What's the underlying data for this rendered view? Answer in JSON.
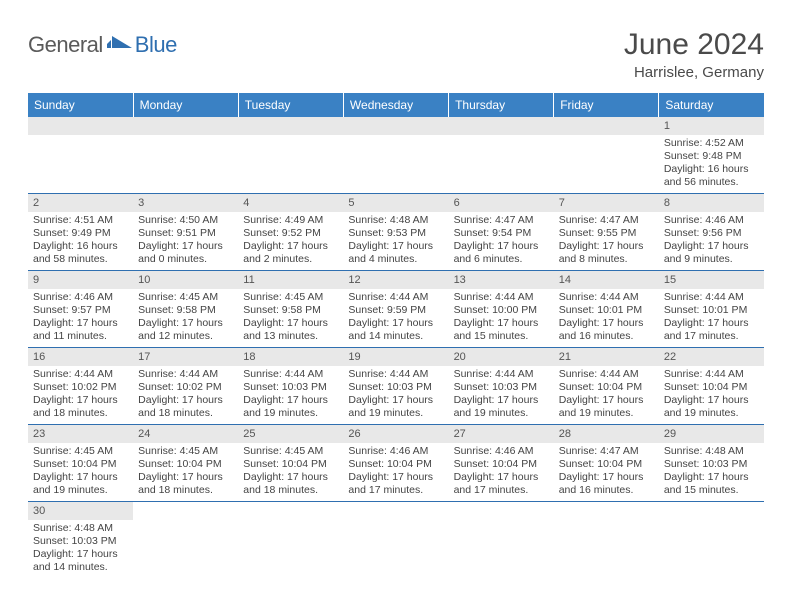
{
  "header": {
    "logo_general": "General",
    "logo_blue": "Blue",
    "month_title": "June 2024",
    "location": "Harrislee, Germany"
  },
  "colors": {
    "header_bg": "#3a81c4",
    "border": "#2f6fb0",
    "daynum_bg": "#e8e8e8",
    "logo_gray": "#5a5a5a",
    "logo_blue": "#2f6fb0"
  },
  "weekdays": [
    "Sunday",
    "Monday",
    "Tuesday",
    "Wednesday",
    "Thursday",
    "Friday",
    "Saturday"
  ],
  "labels": {
    "sunrise": "Sunrise:",
    "sunset": "Sunset:",
    "daylight": "Daylight:"
  },
  "weeks": [
    [
      null,
      null,
      null,
      null,
      null,
      null,
      {
        "n": "1",
        "sr": "4:52 AM",
        "ss": "9:48 PM",
        "dl": "16 hours and 56 minutes."
      }
    ],
    [
      {
        "n": "2",
        "sr": "4:51 AM",
        "ss": "9:49 PM",
        "dl": "16 hours and 58 minutes."
      },
      {
        "n": "3",
        "sr": "4:50 AM",
        "ss": "9:51 PM",
        "dl": "17 hours and 0 minutes."
      },
      {
        "n": "4",
        "sr": "4:49 AM",
        "ss": "9:52 PM",
        "dl": "17 hours and 2 minutes."
      },
      {
        "n": "5",
        "sr": "4:48 AM",
        "ss": "9:53 PM",
        "dl": "17 hours and 4 minutes."
      },
      {
        "n": "6",
        "sr": "4:47 AM",
        "ss": "9:54 PM",
        "dl": "17 hours and 6 minutes."
      },
      {
        "n": "7",
        "sr": "4:47 AM",
        "ss": "9:55 PM",
        "dl": "17 hours and 8 minutes."
      },
      {
        "n": "8",
        "sr": "4:46 AM",
        "ss": "9:56 PM",
        "dl": "17 hours and 9 minutes."
      }
    ],
    [
      {
        "n": "9",
        "sr": "4:46 AM",
        "ss": "9:57 PM",
        "dl": "17 hours and 11 minutes."
      },
      {
        "n": "10",
        "sr": "4:45 AM",
        "ss": "9:58 PM",
        "dl": "17 hours and 12 minutes."
      },
      {
        "n": "11",
        "sr": "4:45 AM",
        "ss": "9:58 PM",
        "dl": "17 hours and 13 minutes."
      },
      {
        "n": "12",
        "sr": "4:44 AM",
        "ss": "9:59 PM",
        "dl": "17 hours and 14 minutes."
      },
      {
        "n": "13",
        "sr": "4:44 AM",
        "ss": "10:00 PM",
        "dl": "17 hours and 15 minutes."
      },
      {
        "n": "14",
        "sr": "4:44 AM",
        "ss": "10:01 PM",
        "dl": "17 hours and 16 minutes."
      },
      {
        "n": "15",
        "sr": "4:44 AM",
        "ss": "10:01 PM",
        "dl": "17 hours and 17 minutes."
      }
    ],
    [
      {
        "n": "16",
        "sr": "4:44 AM",
        "ss": "10:02 PM",
        "dl": "17 hours and 18 minutes."
      },
      {
        "n": "17",
        "sr": "4:44 AM",
        "ss": "10:02 PM",
        "dl": "17 hours and 18 minutes."
      },
      {
        "n": "18",
        "sr": "4:44 AM",
        "ss": "10:03 PM",
        "dl": "17 hours and 19 minutes."
      },
      {
        "n": "19",
        "sr": "4:44 AM",
        "ss": "10:03 PM",
        "dl": "17 hours and 19 minutes."
      },
      {
        "n": "20",
        "sr": "4:44 AM",
        "ss": "10:03 PM",
        "dl": "17 hours and 19 minutes."
      },
      {
        "n": "21",
        "sr": "4:44 AM",
        "ss": "10:04 PM",
        "dl": "17 hours and 19 minutes."
      },
      {
        "n": "22",
        "sr": "4:44 AM",
        "ss": "10:04 PM",
        "dl": "17 hours and 19 minutes."
      }
    ],
    [
      {
        "n": "23",
        "sr": "4:45 AM",
        "ss": "10:04 PM",
        "dl": "17 hours and 19 minutes."
      },
      {
        "n": "24",
        "sr": "4:45 AM",
        "ss": "10:04 PM",
        "dl": "17 hours and 18 minutes."
      },
      {
        "n": "25",
        "sr": "4:45 AM",
        "ss": "10:04 PM",
        "dl": "17 hours and 18 minutes."
      },
      {
        "n": "26",
        "sr": "4:46 AM",
        "ss": "10:04 PM",
        "dl": "17 hours and 17 minutes."
      },
      {
        "n": "27",
        "sr": "4:46 AM",
        "ss": "10:04 PM",
        "dl": "17 hours and 17 minutes."
      },
      {
        "n": "28",
        "sr": "4:47 AM",
        "ss": "10:04 PM",
        "dl": "17 hours and 16 minutes."
      },
      {
        "n": "29",
        "sr": "4:48 AM",
        "ss": "10:03 PM",
        "dl": "17 hours and 15 minutes."
      }
    ],
    [
      {
        "n": "30",
        "sr": "4:48 AM",
        "ss": "10:03 PM",
        "dl": "17 hours and 14 minutes."
      },
      null,
      null,
      null,
      null,
      null,
      null
    ]
  ]
}
